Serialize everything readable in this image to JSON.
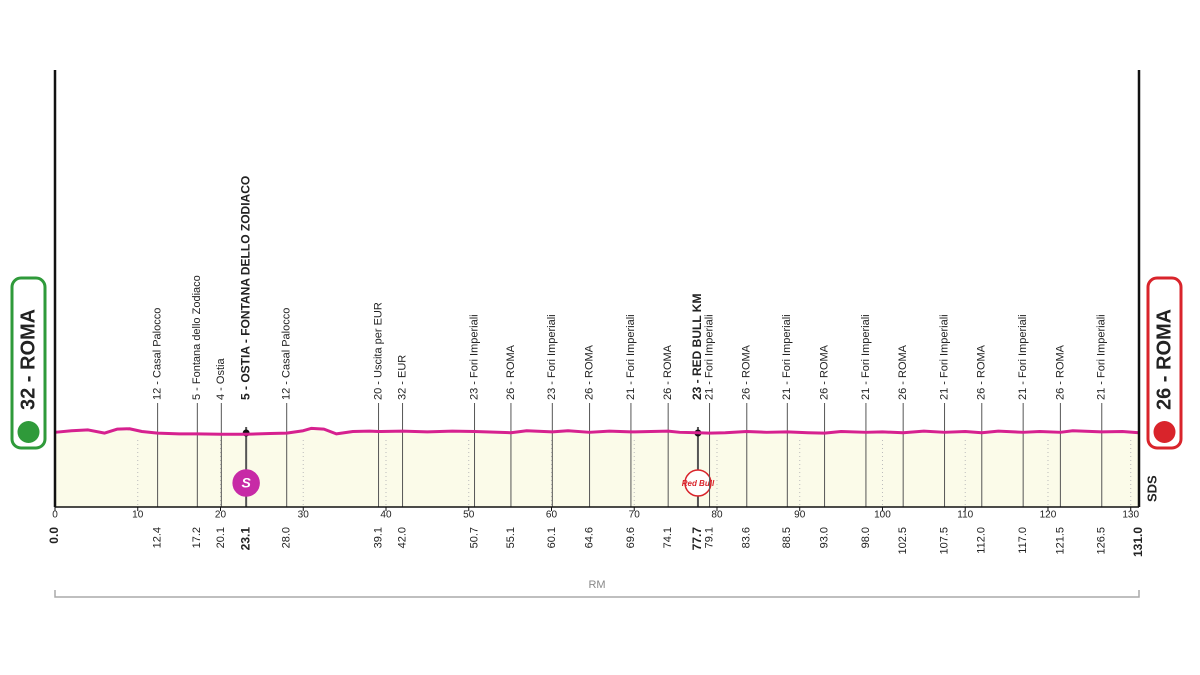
{
  "chart_data": {
    "type": "profile",
    "xlim": [
      0,
      131
    ],
    "xticks": [
      0,
      10,
      20,
      30,
      40,
      50,
      60,
      70,
      80,
      90,
      100,
      110,
      120,
      130
    ],
    "ylim": [
      -160,
      940
    ],
    "grid": true,
    "line_color": "#d6218f",
    "fill_color": "#fbfbe9",
    "x": [
      0,
      2,
      4,
      6,
      7.5,
      9,
      10.5,
      12.4,
      15,
      17.2,
      20.1,
      23.1,
      26,
      28,
      30,
      31,
      32.5,
      34,
      36,
      38,
      39.1,
      42,
      45,
      48,
      50.7,
      55.1,
      57,
      60.1,
      62,
      64.6,
      67,
      69.6,
      72,
      74.1,
      75.5,
      77.7,
      79.1,
      81,
      83.6,
      86,
      88.5,
      91,
      93,
      95,
      98,
      100,
      102.5,
      105,
      107.5,
      110,
      112,
      114,
      117,
      119,
      121.5,
      123,
      126.5,
      129,
      131
    ],
    "values": [
      28,
      32,
      34,
      26,
      36,
      37,
      30,
      26,
      24,
      24,
      23,
      23,
      25,
      26,
      32,
      38,
      36,
      24,
      30,
      31,
      30,
      31,
      29,
      31,
      30,
      27,
      32,
      29,
      32,
      28,
      31,
      29,
      30,
      31,
      28,
      27,
      26,
      27,
      30,
      28,
      29,
      27,
      26,
      30,
      28,
      29,
      27,
      31,
      28,
      30,
      27,
      31,
      28,
      30,
      28,
      32,
      29,
      30,
      27
    ],
    "start": {
      "label": "32 - ROMA",
      "km": {
        "value": 0,
        "label": "0.0"
      },
      "color": "#2f9a3a"
    },
    "finish": {
      "label": "26 - ROMA",
      "km": {
        "value": 131,
        "label": "131.0"
      },
      "color": "#d9242b"
    },
    "waypoints": [
      {
        "name": "12 - Casal Palocco",
        "km": 12.4
      },
      {
        "name": "5 - Fontana dello Zodiaco",
        "km": 17.2
      },
      {
        "name": "4 - Ostia",
        "km": 20.1
      },
      {
        "name": "5 - OSTIA - FONTANA DELLO ZODIACO",
        "km": 23.1,
        "bold": true,
        "icon": "S",
        "icon_color": "#c72aa6"
      },
      {
        "name": "12 - Casal Palocco",
        "km": {
          "value": 28,
          "label": "28.0"
        }
      },
      {
        "name": "20 - Uscita per EUR",
        "km": 39.1
      },
      {
        "name": "32 - EUR",
        "km": {
          "value": 42,
          "label": "42.0"
        }
      },
      {
        "name": "23 - Fori Imperiali",
        "km": 50.7
      },
      {
        "name": "26 - ROMA",
        "km": 55.1
      },
      {
        "name": "23 - Fori Imperiali",
        "km": 60.1
      },
      {
        "name": "26 - ROMA",
        "km": 64.6
      },
      {
        "name": "21 - Fori Imperiali",
        "km": 69.6
      },
      {
        "name": "26 - ROMA",
        "km": 74.1
      },
      {
        "name": "23 - RED BULL KM",
        "km": 77.7,
        "bold": true,
        "icon": "Red Bull",
        "icon_color": "#d9242b"
      },
      {
        "name": "21 - Fori Imperiali",
        "km": 79.1
      },
      {
        "name": "26 - ROMA",
        "km": 83.6
      },
      {
        "name": "21 - Fori Imperiali",
        "km": 88.5
      },
      {
        "name": "26 - ROMA",
        "km": {
          "value": 93,
          "label": "93.0"
        }
      },
      {
        "name": "21 - Fori Imperiali",
        "km": {
          "value": 98,
          "label": "98.0"
        }
      },
      {
        "name": "26 - ROMA",
        "km": 102.5
      },
      {
        "name": "21 - Fori Imperiali",
        "km": 107.5
      },
      {
        "name": "26 - ROMA",
        "km": {
          "value": 112,
          "label": "112.0"
        }
      },
      {
        "name": "21 - Fori Imperiali",
        "km": {
          "value": 117,
          "label": "117.0"
        }
      },
      {
        "name": "26 - ROMA",
        "km": 121.5
      },
      {
        "name": "21 - Fori Imperiali",
        "km": 126.5
      }
    ],
    "region": "RM",
    "brand": "SDS"
  }
}
